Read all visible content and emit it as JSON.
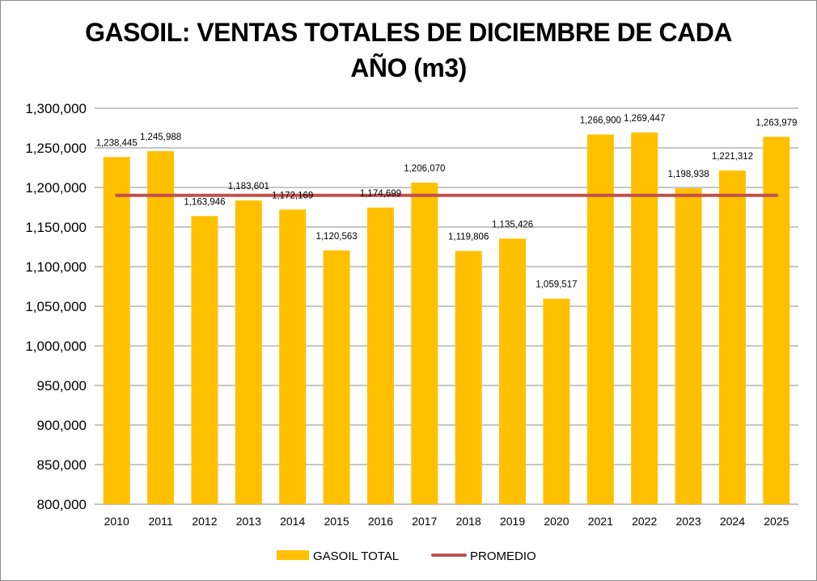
{
  "chart_data": {
    "type": "bar",
    "title": "GASOIL: VENTAS TOTALES DE DICIEMBRE DE CADA AÑO (m3)",
    "title_lines": [
      "GASOIL: VENTAS TOTALES DE DICIEMBRE DE CADA",
      "AÑO (m3)"
    ],
    "xlabel": "",
    "ylabel": "",
    "ylim": [
      800000,
      1300000
    ],
    "ytick_step": 50000,
    "yticks": [
      "1,300,000",
      "1,250,000",
      "1,200,000",
      "1,150,000",
      "1,100,000",
      "1,050,000",
      "1,000,000",
      "950,000",
      "900,000",
      "850,000",
      "800,000"
    ],
    "grid": true,
    "categories": [
      "2010",
      "2011",
      "2012",
      "2013",
      "2014",
      "2015",
      "2016",
      "2017",
      "2018",
      "2019",
      "2020",
      "2021",
      "2022",
      "2023",
      "2024",
      "2025"
    ],
    "series": [
      {
        "name": "GASOIL TOTAL",
        "type": "bar",
        "color": "#FFC000",
        "values": [
          1238445,
          1245988,
          1163946,
          1183601,
          1172169,
          1120563,
          1174699,
          1206070,
          1119806,
          1135426,
          1059517,
          1266900,
          1269447,
          1198938,
          1221312,
          1263979
        ],
        "labels": [
          "1,238,445",
          "1,245,988",
          "1,163,946",
          "1,183,601",
          "1,172,169",
          "1,120,563",
          "1,174,699",
          "1,206,070",
          "1,119,806",
          "1,135,426",
          "1,059,517",
          "1,266,900",
          "1,269,447",
          "1,198,938",
          "1,221,312",
          "1,263,979"
        ]
      },
      {
        "name": "PROMEDIO",
        "type": "line",
        "color": "#C0504D",
        "value": 1190113
      }
    ],
    "legend_position": "bottom"
  }
}
